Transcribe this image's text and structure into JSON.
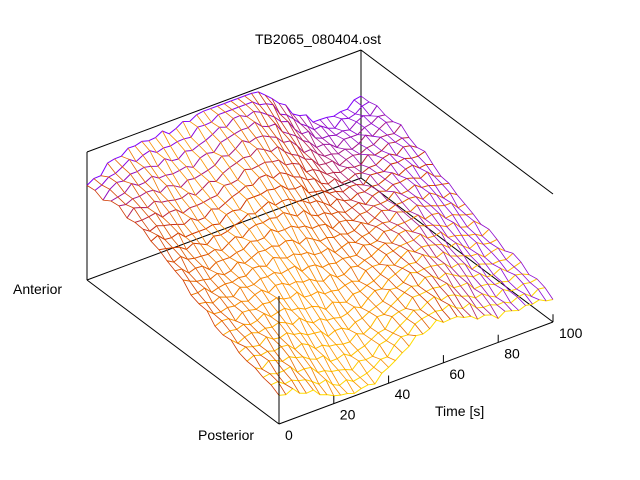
{
  "chart_data": {
    "type": "surface",
    "title": "TB2065_080404.ost",
    "x_axis": {
      "label": "Time [s]",
      "range": [
        0,
        100
      ],
      "ticks": [
        "0",
        "20",
        "40",
        "60",
        "80",
        "100"
      ]
    },
    "y_axis": {
      "labels": [
        "Anterior",
        "Posterior"
      ]
    },
    "z_axis": {
      "label": ""
    },
    "grid": false,
    "colormap": [
      "#7f00ff",
      "#cc3300",
      "#ff9900",
      "#ffdd00"
    ]
  }
}
